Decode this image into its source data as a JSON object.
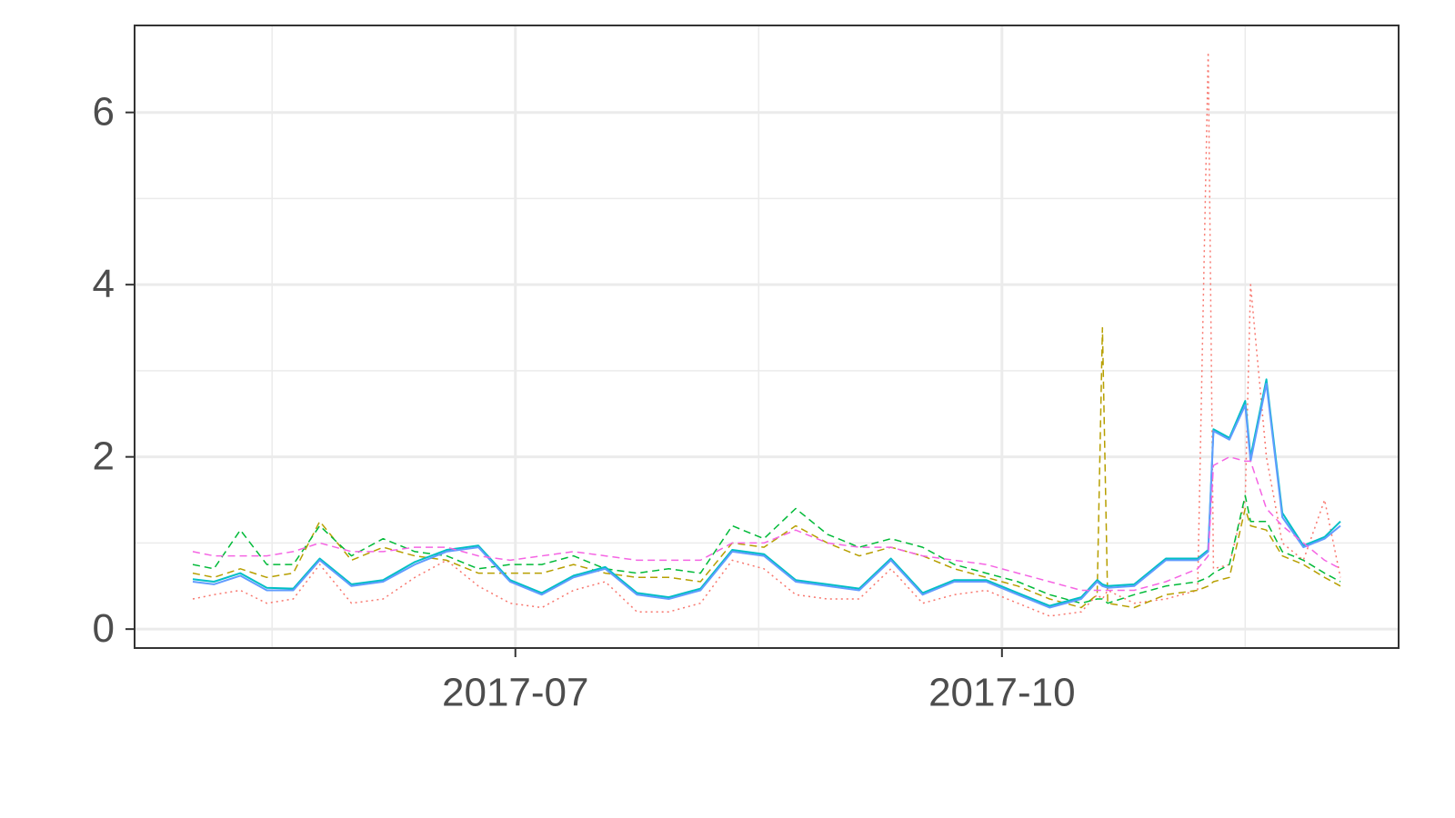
{
  "chart_data": {
    "type": "line",
    "x": [
      "2017-05-01",
      "2017-05-05",
      "2017-05-10",
      "2017-05-15",
      "2017-05-20",
      "2017-05-25",
      "2017-05-31",
      "2017-06-06",
      "2017-06-12",
      "2017-06-18",
      "2017-06-24",
      "2017-06-30",
      "2017-07-06",
      "2017-07-12",
      "2017-07-18",
      "2017-07-24",
      "2017-07-30",
      "2017-08-05",
      "2017-08-11",
      "2017-08-17",
      "2017-08-23",
      "2017-08-29",
      "2017-09-04",
      "2017-09-10",
      "2017-09-16",
      "2017-09-22",
      "2017-09-28",
      "2017-10-04",
      "2017-10-10",
      "2017-10-16",
      "2017-10-19",
      "2017-10-20",
      "2017-10-21",
      "2017-10-26",
      "2017-11-01",
      "2017-11-07",
      "2017-11-09",
      "2017-11-10",
      "2017-11-13",
      "2017-11-16",
      "2017-11-17",
      "2017-11-20",
      "2017-11-23",
      "2017-11-27",
      "2017-12-01",
      "2017-12-04"
    ],
    "series": [
      {
        "color": "#F8766D",
        "dash": "dotted",
        "values": [
          0.35,
          0.4,
          0.45,
          0.3,
          0.35,
          0.75,
          0.3,
          0.35,
          0.6,
          0.8,
          0.5,
          0.3,
          0.25,
          0.45,
          0.55,
          0.2,
          0.2,
          0.3,
          0.8,
          0.7,
          0.4,
          0.35,
          0.35,
          0.7,
          0.3,
          0.4,
          0.45,
          0.3,
          0.15,
          0.2,
          0.4,
          0.35,
          0.45,
          0.3,
          0.35,
          0.45,
          6.7,
          0.7,
          0.75,
          1.5,
          4.0,
          2.0,
          1.0,
          0.8,
          1.5,
          0.6
        ]
      },
      {
        "color": "#B79F00",
        "dash": "dashed",
        "values": [
          0.65,
          0.6,
          0.7,
          0.6,
          0.65,
          1.25,
          0.8,
          0.95,
          0.85,
          0.8,
          0.65,
          0.65,
          0.65,
          0.75,
          0.65,
          0.6,
          0.6,
          0.55,
          1.0,
          0.95,
          1.2,
          1.0,
          0.85,
          0.95,
          0.85,
          0.7,
          0.6,
          0.5,
          0.35,
          0.25,
          0.4,
          3.5,
          0.3,
          0.25,
          0.4,
          0.45,
          0.5,
          0.55,
          0.6,
          1.4,
          1.2,
          1.15,
          0.85,
          0.75,
          0.6,
          0.5
        ]
      },
      {
        "color": "#00BA38",
        "dash": "dashed",
        "values": [
          0.75,
          0.7,
          1.15,
          0.75,
          0.75,
          1.2,
          0.85,
          1.05,
          0.9,
          0.85,
          0.7,
          0.75,
          0.75,
          0.85,
          0.7,
          0.65,
          0.7,
          0.65,
          1.2,
          1.05,
          1.4,
          1.1,
          0.95,
          1.05,
          0.95,
          0.75,
          0.65,
          0.55,
          0.4,
          0.3,
          0.35,
          0.35,
          0.3,
          0.4,
          0.5,
          0.55,
          0.6,
          0.65,
          0.75,
          1.55,
          1.25,
          1.25,
          0.9,
          0.8,
          0.65,
          0.55
        ]
      },
      {
        "color": "#00BFC4",
        "dash": "solid",
        "values": [
          0.58,
          0.55,
          0.65,
          0.48,
          0.47,
          0.82,
          0.52,
          0.57,
          0.78,
          0.92,
          0.97,
          0.57,
          0.42,
          0.62,
          0.72,
          0.42,
          0.37,
          0.47,
          0.92,
          0.87,
          0.57,
          0.52,
          0.47,
          0.82,
          0.42,
          0.57,
          0.57,
          0.42,
          0.27,
          0.37,
          0.57,
          0.52,
          0.5,
          0.52,
          0.82,
          0.82,
          0.92,
          2.32,
          2.22,
          2.65,
          2.0,
          2.9,
          1.35,
          0.97,
          1.07,
          1.25
        ]
      },
      {
        "color": "#619CFF",
        "dash": "solid",
        "values": [
          0.55,
          0.52,
          0.62,
          0.45,
          0.45,
          0.8,
          0.5,
          0.55,
          0.75,
          0.9,
          0.95,
          0.55,
          0.4,
          0.6,
          0.7,
          0.4,
          0.35,
          0.45,
          0.9,
          0.85,
          0.55,
          0.5,
          0.45,
          0.8,
          0.4,
          0.55,
          0.55,
          0.4,
          0.25,
          0.35,
          0.55,
          0.5,
          0.48,
          0.5,
          0.8,
          0.8,
          0.9,
          2.3,
          2.2,
          2.6,
          1.95,
          2.85,
          1.3,
          0.95,
          1.05,
          1.2
        ]
      },
      {
        "color": "#F564E3",
        "dash": "dashed",
        "values": [
          0.9,
          0.85,
          0.85,
          0.85,
          0.9,
          1.0,
          0.9,
          0.9,
          0.95,
          0.95,
          0.85,
          0.8,
          0.85,
          0.9,
          0.85,
          0.8,
          0.8,
          0.8,
          1.0,
          1.0,
          1.15,
          1.0,
          0.95,
          0.95,
          0.85,
          0.8,
          0.75,
          0.65,
          0.55,
          0.45,
          0.45,
          0.45,
          0.45,
          0.45,
          0.55,
          0.7,
          0.85,
          1.9,
          2.0,
          1.95,
          1.95,
          1.4,
          1.2,
          1.0,
          0.8,
          0.7
        ]
      }
    ],
    "xlim": [
      "2017-04-20",
      "2017-12-15"
    ],
    "xticks": [
      {
        "value": "2017-07-01",
        "label": "2017-07"
      },
      {
        "value": "2017-10-01",
        "label": "2017-10"
      }
    ],
    "ylim": [
      -0.22,
      7.01
    ],
    "yticks": [
      0,
      2,
      4,
      6
    ],
    "grid": true
  }
}
